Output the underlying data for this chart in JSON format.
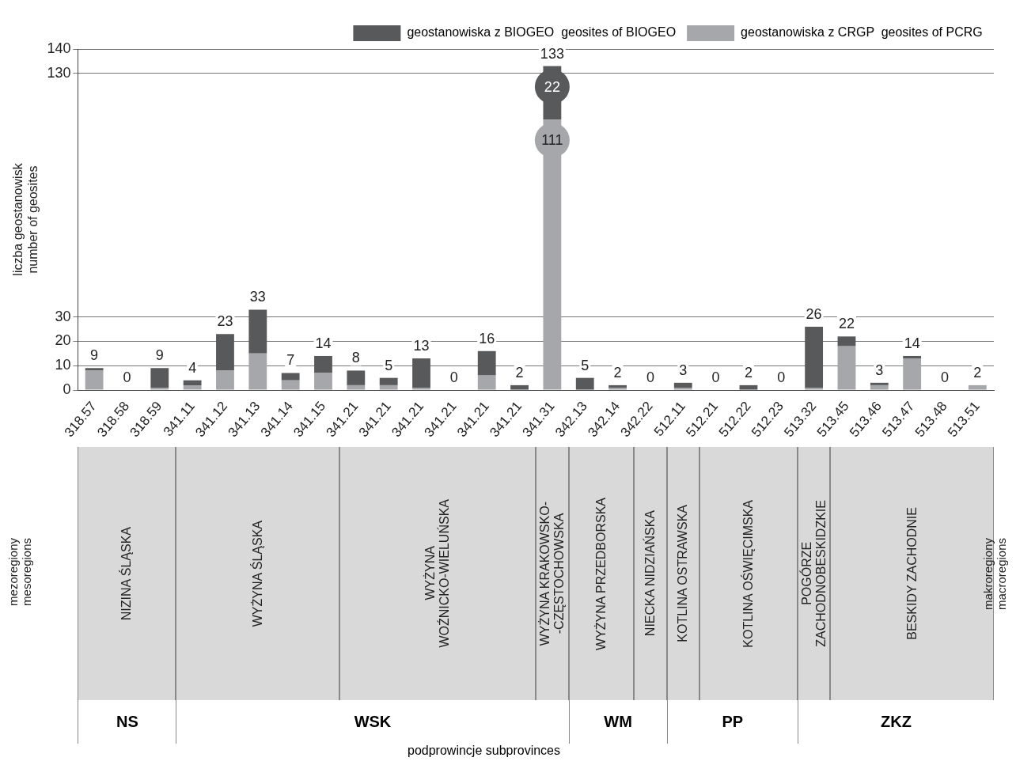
{
  "chart_data": {
    "type": "bar",
    "stacked": true,
    "ylabel": "liczba geostanowisk\nnumber of geosites",
    "categories": [
      "318.57",
      "318.58",
      "318.59",
      "341.11",
      "341.12",
      "341.13",
      "341.14",
      "341.15",
      "341.21",
      "341.21",
      "341.21",
      "341.21",
      "341.21",
      "341.21",
      "341.31",
      "342.13",
      "342.14",
      "342.22",
      "512.11",
      "512.21",
      "512.22",
      "512.23",
      "513.32",
      "513.45",
      "513.46",
      "513.47",
      "513.48",
      "513.51"
    ],
    "series": [
      {
        "name": "geostanowiska z CRGP\ngeosites of PCRG",
        "color": "#a6a7aa",
        "values": [
          8,
          0,
          1,
          2,
          8,
          15,
          4,
          7,
          2,
          2,
          1,
          0,
          6,
          0,
          111,
          0,
          1,
          0,
          1,
          0,
          0,
          0,
          1,
          18,
          2,
          13,
          0,
          2
        ],
        "value_labels": [
          null,
          null,
          null,
          null,
          null,
          null,
          null,
          null,
          null,
          null,
          null,
          null,
          null,
          null,
          "111",
          null,
          null,
          null,
          null,
          null,
          null,
          null,
          null,
          null,
          null,
          null,
          null,
          null
        ]
      },
      {
        "name": "geostanowiska z BIOGEO\ngeosites of BIOGEO",
        "color": "#58595b",
        "values": [
          1,
          0,
          8,
          2,
          15,
          18,
          3,
          7,
          6,
          3,
          12,
          0,
          10,
          2,
          22,
          5,
          1,
          0,
          2,
          0,
          2,
          0,
          25,
          4,
          1,
          1,
          0,
          0
        ],
        "value_labels": [
          null,
          null,
          null,
          null,
          null,
          null,
          null,
          null,
          null,
          null,
          null,
          null,
          null,
          null,
          "22",
          null,
          null,
          null,
          null,
          null,
          null,
          null,
          null,
          null,
          null,
          null,
          null,
          null
        ]
      }
    ],
    "totals": [
      "9",
      "0",
      "9",
      "4",
      "23",
      "33",
      "7",
      "14",
      "8",
      "5",
      "13",
      "0",
      "16",
      "2",
      "133",
      "5",
      "2",
      "0",
      "3",
      "0",
      "2",
      "0",
      "26",
      "22",
      "3",
      "14",
      "0",
      "2"
    ],
    "ylim": [
      0,
      140
    ],
    "yticks": [
      0,
      10,
      20,
      30,
      130,
      140
    ],
    "grid": "y",
    "legend": "top right",
    "annotations": [
      "mezoregiony\nmesoregions",
      "makroregiony\nmacroregions",
      "podprowincje  subprovinces",
      "NIZINA  ŚLĄSKA",
      "WYŻYNA  ŚLĄSKA",
      "WYŻYNA\nWOŹNICKO-WIELUŃSKA",
      "WYŻYNA  KRAKOWSKO-\n-CZĘSTOCHOWSKA",
      "WYŻYNA PRZEDBORSKA",
      "NIECKA  NIDZIAŃSKA",
      "KOTLINA  OSTRAWSKA",
      "KOTLINA OŚWIĘCIMSKA",
      "POGÓRZE\nZACHODNOBESKIDZKIE",
      "BESKIDY  ZACHODNIE",
      "NS",
      "WSK",
      "WM",
      "PP",
      "ZKZ"
    ]
  }
}
